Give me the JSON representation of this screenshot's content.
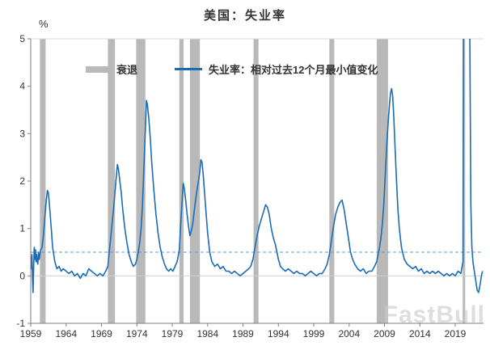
{
  "chart_data": {
    "type": "line",
    "title": "美国：失业率",
    "unit_label": "%",
    "watermark": "FastBull",
    "x_range": [
      1959,
      2023
    ],
    "y_range": [
      -1,
      5
    ],
    "x_ticks": [
      1959,
      1964,
      1969,
      1974,
      1979,
      1984,
      1989,
      1994,
      1999,
      2004,
      2009,
      2014,
      2019
    ],
    "y_ticks": [
      5,
      4,
      3,
      2,
      1,
      0,
      -1
    ],
    "grid": "zero-line only",
    "legend_position": "top-inside",
    "legend": [
      {
        "label": "衰退",
        "type": "bar",
        "color": "#b9b9b9"
      },
      {
        "label": "失业率：相对过去12个月最小值变化",
        "type": "line",
        "color": "#1b6cb5"
      }
    ],
    "threshold_line": {
      "value": 0.5,
      "style": "dashed",
      "color": "#5b9bd5"
    },
    "colors": {
      "line": "#1b6cb5",
      "recession": "#b9b9b9",
      "threshold": "#5b9bd5",
      "zero_line": "#cfcfcf",
      "axis": "#7f7f7f",
      "top_border": "#d9d9d9"
    },
    "recessions": [
      [
        1960.3,
        1961.1
      ],
      [
        1969.9,
        1970.9
      ],
      [
        1973.9,
        1975.2
      ],
      [
        1980.0,
        1980.6
      ],
      [
        1981.5,
        1982.9
      ],
      [
        1990.5,
        1991.2
      ],
      [
        2001.2,
        2001.9
      ],
      [
        2007.9,
        2009.5
      ],
      [
        2020.05,
        2020.4
      ]
    ],
    "series": [
      {
        "name": "失业率：相对过去12个月最小值变化",
        "color": "#1b6cb5",
        "points": [
          [
            1959.0,
            0.4
          ],
          [
            1959.08,
            0.15
          ],
          [
            1959.17,
            0.45
          ],
          [
            1959.25,
            -0.05
          ],
          [
            1959.33,
            -0.35
          ],
          [
            1959.42,
            0.25
          ],
          [
            1959.5,
            0.6
          ],
          [
            1959.58,
            0.35
          ],
          [
            1959.67,
            0.55
          ],
          [
            1959.75,
            0.3
          ],
          [
            1959.83,
            0.45
          ],
          [
            1959.92,
            0.3
          ],
          [
            1960.0,
            0.25
          ],
          [
            1960.1,
            0.5
          ],
          [
            1960.2,
            0.35
          ],
          [
            1960.4,
            0.55
          ],
          [
            1960.6,
            0.6
          ],
          [
            1960.8,
            0.85
          ],
          [
            1961.0,
            1.25
          ],
          [
            1961.2,
            1.6
          ],
          [
            1961.35,
            1.8
          ],
          [
            1961.5,
            1.75
          ],
          [
            1961.7,
            1.4
          ],
          [
            1961.9,
            1.0
          ],
          [
            1962.1,
            0.6
          ],
          [
            1962.4,
            0.3
          ],
          [
            1962.7,
            0.15
          ],
          [
            1963.0,
            0.2
          ],
          [
            1963.3,
            0.1
          ],
          [
            1963.6,
            0.15
          ],
          [
            1964.0,
            0.1
          ],
          [
            1964.4,
            0.05
          ],
          [
            1964.8,
            0.1
          ],
          [
            1965.2,
            0.0
          ],
          [
            1965.6,
            0.05
          ],
          [
            1966.0,
            -0.05
          ],
          [
            1966.4,
            0.05
          ],
          [
            1966.8,
            0.0
          ],
          [
            1967.2,
            0.15
          ],
          [
            1967.6,
            0.1
          ],
          [
            1968.0,
            0.05
          ],
          [
            1968.4,
            0.0
          ],
          [
            1968.8,
            0.05
          ],
          [
            1969.2,
            0.0
          ],
          [
            1969.6,
            0.1
          ],
          [
            1969.9,
            0.2
          ],
          [
            1970.1,
            0.5
          ],
          [
            1970.3,
            0.8
          ],
          [
            1970.5,
            1.1
          ],
          [
            1970.7,
            1.4
          ],
          [
            1970.9,
            1.75
          ],
          [
            1971.1,
            2.1
          ],
          [
            1971.25,
            2.35
          ],
          [
            1971.4,
            2.25
          ],
          [
            1971.6,
            2.0
          ],
          [
            1971.8,
            1.75
          ],
          [
            1972.0,
            1.4
          ],
          [
            1972.3,
            1.0
          ],
          [
            1972.6,
            0.7
          ],
          [
            1972.9,
            0.45
          ],
          [
            1973.2,
            0.3
          ],
          [
            1973.5,
            0.2
          ],
          [
            1973.8,
            0.25
          ],
          [
            1974.0,
            0.35
          ],
          [
            1974.2,
            0.5
          ],
          [
            1974.4,
            0.7
          ],
          [
            1974.6,
            1.0
          ],
          [
            1974.8,
            1.5
          ],
          [
            1975.0,
            2.3
          ],
          [
            1975.2,
            3.1
          ],
          [
            1975.35,
            3.7
          ],
          [
            1975.5,
            3.6
          ],
          [
            1975.7,
            3.3
          ],
          [
            1975.9,
            2.9
          ],
          [
            1976.1,
            2.4
          ],
          [
            1976.4,
            1.8
          ],
          [
            1976.7,
            1.3
          ],
          [
            1977.0,
            0.9
          ],
          [
            1977.3,
            0.6
          ],
          [
            1977.6,
            0.4
          ],
          [
            1977.9,
            0.25
          ],
          [
            1978.2,
            0.15
          ],
          [
            1978.5,
            0.1
          ],
          [
            1978.8,
            0.15
          ],
          [
            1979.1,
            0.1
          ],
          [
            1979.4,
            0.2
          ],
          [
            1979.7,
            0.3
          ],
          [
            1980.0,
            0.55
          ],
          [
            1980.2,
            1.1
          ],
          [
            1980.4,
            1.6
          ],
          [
            1980.55,
            1.95
          ],
          [
            1980.7,
            1.85
          ],
          [
            1980.9,
            1.6
          ],
          [
            1981.1,
            1.3
          ],
          [
            1981.3,
            1.05
          ],
          [
            1981.5,
            0.85
          ],
          [
            1981.7,
            0.95
          ],
          [
            1981.9,
            1.1
          ],
          [
            1982.1,
            1.35
          ],
          [
            1982.3,
            1.6
          ],
          [
            1982.5,
            1.8
          ],
          [
            1982.7,
            2.0
          ],
          [
            1982.9,
            2.2
          ],
          [
            1983.05,
            2.45
          ],
          [
            1983.2,
            2.4
          ],
          [
            1983.4,
            2.1
          ],
          [
            1983.6,
            1.7
          ],
          [
            1983.8,
            1.3
          ],
          [
            1984.0,
            0.9
          ],
          [
            1984.3,
            0.5
          ],
          [
            1984.6,
            0.3
          ],
          [
            1985.0,
            0.2
          ],
          [
            1985.4,
            0.25
          ],
          [
            1985.8,
            0.15
          ],
          [
            1986.2,
            0.2
          ],
          [
            1986.6,
            0.1
          ],
          [
            1987.0,
            0.1
          ],
          [
            1987.4,
            0.05
          ],
          [
            1987.8,
            0.1
          ],
          [
            1988.2,
            0.05
          ],
          [
            1988.6,
            0.0
          ],
          [
            1989.0,
            0.05
          ],
          [
            1989.4,
            0.1
          ],
          [
            1989.8,
            0.15
          ],
          [
            1990.1,
            0.2
          ],
          [
            1990.4,
            0.35
          ],
          [
            1990.7,
            0.6
          ],
          [
            1991.0,
            0.85
          ],
          [
            1991.3,
            1.05
          ],
          [
            1991.6,
            1.2
          ],
          [
            1991.9,
            1.35
          ],
          [
            1992.2,
            1.5
          ],
          [
            1992.45,
            1.45
          ],
          [
            1992.7,
            1.3
          ],
          [
            1993.0,
            1.0
          ],
          [
            1993.3,
            0.8
          ],
          [
            1993.6,
            0.65
          ],
          [
            1994.0,
            0.35
          ],
          [
            1994.3,
            0.2
          ],
          [
            1994.6,
            0.15
          ],
          [
            1995.0,
            0.1
          ],
          [
            1995.4,
            0.15
          ],
          [
            1995.8,
            0.1
          ],
          [
            1996.2,
            0.05
          ],
          [
            1996.6,
            0.1
          ],
          [
            1997.0,
            0.05
          ],
          [
            1997.4,
            0.05
          ],
          [
            1997.8,
            0.0
          ],
          [
            1998.2,
            0.05
          ],
          [
            1998.6,
            0.1
          ],
          [
            1999.0,
            0.05
          ],
          [
            1999.4,
            0.0
          ],
          [
            1999.8,
            0.05
          ],
          [
            2000.2,
            0.05
          ],
          [
            2000.6,
            0.15
          ],
          [
            2000.9,
            0.25
          ],
          [
            2001.2,
            0.45
          ],
          [
            2001.5,
            0.75
          ],
          [
            2001.8,
            1.05
          ],
          [
            2002.1,
            1.3
          ],
          [
            2002.4,
            1.45
          ],
          [
            2002.7,
            1.55
          ],
          [
            2003.0,
            1.6
          ],
          [
            2003.3,
            1.4
          ],
          [
            2003.6,
            1.1
          ],
          [
            2003.9,
            0.8
          ],
          [
            2004.2,
            0.5
          ],
          [
            2004.5,
            0.35
          ],
          [
            2004.8,
            0.25
          ],
          [
            2005.2,
            0.15
          ],
          [
            2005.6,
            0.1
          ],
          [
            2006.0,
            0.15
          ],
          [
            2006.4,
            0.05
          ],
          [
            2006.8,
            0.1
          ],
          [
            2007.2,
            0.1
          ],
          [
            2007.6,
            0.2
          ],
          [
            2007.9,
            0.3
          ],
          [
            2008.1,
            0.45
          ],
          [
            2008.3,
            0.6
          ],
          [
            2008.5,
            0.8
          ],
          [
            2008.7,
            1.1
          ],
          [
            2008.9,
            1.5
          ],
          [
            2009.1,
            2.1
          ],
          [
            2009.3,
            2.7
          ],
          [
            2009.5,
            3.2
          ],
          [
            2009.7,
            3.6
          ],
          [
            2009.85,
            3.85
          ],
          [
            2010.0,
            3.95
          ],
          [
            2010.15,
            3.8
          ],
          [
            2010.3,
            3.4
          ],
          [
            2010.5,
            2.7
          ],
          [
            2010.7,
            2.0
          ],
          [
            2010.9,
            1.4
          ],
          [
            2011.1,
            1.0
          ],
          [
            2011.4,
            0.6
          ],
          [
            2011.8,
            0.35
          ],
          [
            2012.2,
            0.25
          ],
          [
            2012.6,
            0.2
          ],
          [
            2013.0,
            0.15
          ],
          [
            2013.4,
            0.2
          ],
          [
            2013.8,
            0.1
          ],
          [
            2014.2,
            0.15
          ],
          [
            2014.6,
            0.05
          ],
          [
            2015.0,
            0.1
          ],
          [
            2015.4,
            0.05
          ],
          [
            2015.8,
            0.1
          ],
          [
            2016.2,
            0.05
          ],
          [
            2016.6,
            0.1
          ],
          [
            2017.0,
            0.05
          ],
          [
            2017.4,
            0.0
          ],
          [
            2017.8,
            0.05
          ],
          [
            2018.2,
            0.0
          ],
          [
            2018.6,
            0.05
          ],
          [
            2019.0,
            0.0
          ],
          [
            2019.4,
            0.1
          ],
          [
            2019.8,
            0.05
          ],
          [
            2020.1,
            0.3
          ],
          [
            2020.25,
            11.2
          ],
          [
            2020.5,
            9.8
          ],
          [
            2020.75,
            8.4
          ],
          [
            2021.0,
            6.6
          ],
          [
            2021.2,
            1.5
          ],
          [
            2021.35,
            0.6
          ],
          [
            2021.5,
            0.3
          ],
          [
            2021.7,
            0.1
          ],
          [
            2021.9,
            -0.1
          ],
          [
            2022.1,
            -0.3
          ],
          [
            2022.3,
            -0.35
          ],
          [
            2022.5,
            -0.2
          ],
          [
            2022.7,
            0.0
          ],
          [
            2022.85,
            0.1
          ]
        ]
      }
    ]
  }
}
